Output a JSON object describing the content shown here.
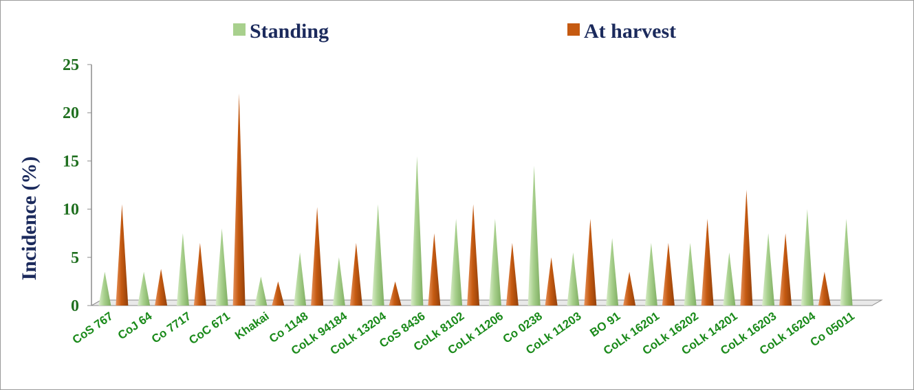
{
  "chart_data": {
    "type": "bar",
    "title": "",
    "xlabel": "",
    "ylabel": "Incidence (%)",
    "ylim": [
      0,
      25
    ],
    "yticks": [
      0,
      5,
      10,
      15,
      20,
      25
    ],
    "grid": false,
    "legend_position": "top",
    "categories": [
      "CoS 767",
      "CoJ 64",
      "Co 7717",
      "CoC 671",
      "Khakai",
      "Co 1148",
      "CoLk 94184",
      "CoLk 13204",
      "CoS 8436",
      "CoLk 8102",
      "CoLk 11206",
      "Co 0238",
      "CoLk 11203",
      "BO 91",
      "CoLk 16201",
      "CoLk 16202",
      "CoLk 14201",
      "CoLk 16203",
      "CoLk 16204",
      "Co 05011"
    ],
    "series": [
      {
        "name": "Standing",
        "color": "#a8d08d",
        "values": [
          3.5,
          3.5,
          7.5,
          8,
          3,
          5.5,
          5,
          10.5,
          15.5,
          9,
          9,
          14.5,
          5.5,
          7,
          6.5,
          6.5,
          5.5,
          7.5,
          10,
          9
        ]
      },
      {
        "name": "At harvest",
        "color": "#c55a11",
        "values": [
          10.5,
          3.8,
          6.5,
          22,
          2.5,
          10.2,
          6.5,
          2.5,
          7.5,
          10.5,
          6.5,
          5,
          9,
          3.5,
          6.5,
          9,
          12,
          7.5,
          3.5,
          0
        ]
      }
    ]
  }
}
